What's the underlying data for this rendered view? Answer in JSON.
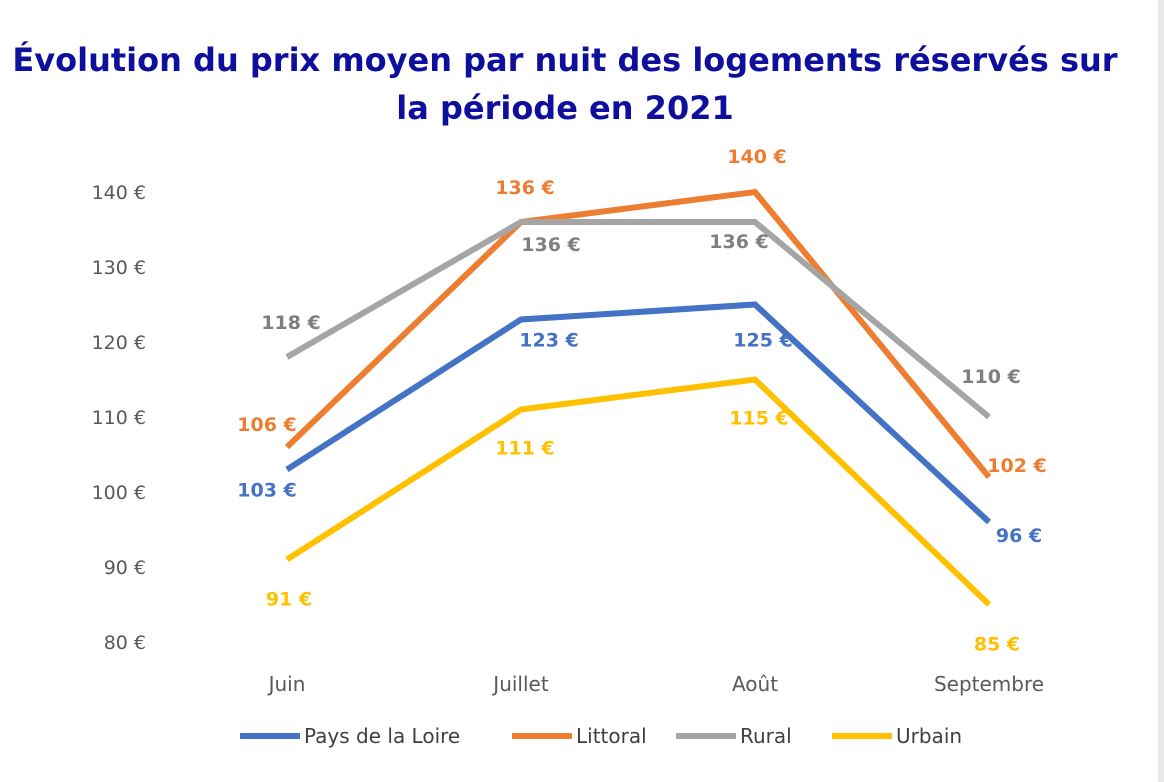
{
  "chart_data": {
    "type": "line",
    "title": "Évolution du prix moyen par nuit des logements réservés sur la période en 2021",
    "categories": [
      "Juin",
      "Juillet",
      "Août",
      "Septembre"
    ],
    "ylim": [
      80,
      140
    ],
    "yticks": [
      80,
      90,
      100,
      110,
      120,
      130,
      140
    ],
    "y_unit_suffix": " €",
    "grid": false,
    "legend_position": "bottom",
    "series": [
      {
        "name": "Pays de la Loire",
        "color": "#4472c4",
        "values": [
          103,
          123,
          125,
          96
        ],
        "labels": [
          "103 €",
          "123 €",
          "125 €",
          "96 €"
        ]
      },
      {
        "name": "Littoral",
        "color": "#ed7d31",
        "values": [
          106,
          136,
          140,
          102
        ],
        "labels": [
          "106 €",
          "136 €",
          "140 €",
          "102 €"
        ]
      },
      {
        "name": "Rural",
        "color": "#a5a5a5",
        "label_color": "#7f7f7f",
        "values": [
          118,
          136,
          136,
          110
        ],
        "labels": [
          "118 €",
          "136 €",
          "136 €",
          "110 €"
        ]
      },
      {
        "name": "Urbain",
        "color": "#ffc000",
        "values": [
          91,
          111,
          115,
          85
        ],
        "labels": [
          "91 €",
          "111 €",
          "115 €",
          "85 €"
        ]
      }
    ]
  }
}
